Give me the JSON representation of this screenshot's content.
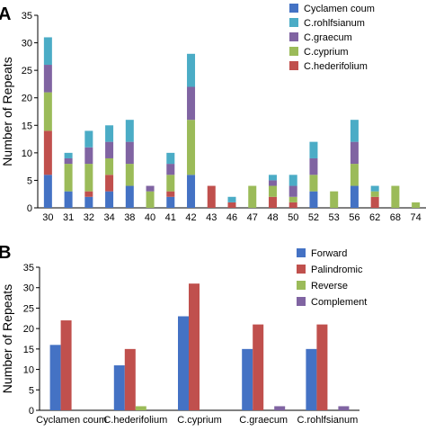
{
  "panels": {
    "a": {
      "letter": "A"
    },
    "b": {
      "letter": "B"
    }
  },
  "chart_data": [
    {
      "type": "bar",
      "stacked": true,
      "ylabel": "Number of Repeats",
      "xlabel": "",
      "ylim": [
        0,
        35
      ],
      "yticks": [
        0,
        5,
        10,
        15,
        20,
        25,
        30,
        35
      ],
      "grid": false,
      "legend_position": "top-right",
      "categories": [
        "30",
        "31",
        "32",
        "34",
        "38",
        "40",
        "41",
        "42",
        "43",
        "46",
        "47",
        "48",
        "50",
        "52",
        "53",
        "56",
        "62",
        "68",
        "74"
      ],
      "series": [
        {
          "name": "Cyclamen coum",
          "color": "#4472C4",
          "values": [
            6,
            3,
            2,
            3,
            4,
            0,
            2,
            6,
            0,
            0,
            0,
            0,
            0,
            3,
            0,
            4,
            0,
            0,
            0
          ]
        },
        {
          "name": "C.hederifolium",
          "color": "#C0504D",
          "values": [
            8,
            0,
            1,
            3,
            0,
            0,
            1,
            0,
            4,
            1,
            0,
            2,
            1,
            0,
            0,
            0,
            2,
            0,
            0
          ]
        },
        {
          "name": "C.cyprium",
          "color": "#9BBB59",
          "values": [
            7,
            5,
            5,
            3,
            4,
            3,
            3,
            10,
            0,
            0,
            4,
            2,
            1,
            3,
            3,
            4,
            1,
            4,
            1
          ]
        },
        {
          "name": "C.graecum",
          "color": "#8064A2",
          "values": [
            5,
            1,
            3,
            3,
            4,
            1,
            2,
            6,
            0,
            0,
            0,
            1,
            2,
            3,
            0,
            4,
            0,
            0,
            0
          ]
        },
        {
          "name": "C.rohlfsianum",
          "color": "#4BACC6",
          "values": [
            5,
            1,
            3,
            3,
            4,
            0,
            2,
            6,
            0,
            1,
            0,
            1,
            2,
            3,
            0,
            4,
            1,
            0,
            0
          ]
        }
      ],
      "legend_order": [
        "Cyclamen coum",
        "C.rohlfsianum",
        "C.graecum",
        "C.cyprium",
        "C.hederifolium"
      ]
    },
    {
      "type": "bar",
      "stacked": false,
      "ylabel": "Number of Repeats",
      "xlabel": "",
      "ylim": [
        0,
        35
      ],
      "yticks": [
        0,
        5,
        10,
        15,
        20,
        25,
        30,
        35
      ],
      "grid": false,
      "legend_position": "top-right",
      "categories": [
        "Cyclamen coum",
        "C.hederifolium",
        "C.cyprium",
        "C.graecum",
        "C.rohlfsianum"
      ],
      "series": [
        {
          "name": "Forward",
          "color": "#4472C4",
          "values": [
            16,
            11,
            23,
            15,
            15
          ]
        },
        {
          "name": "Palindromic",
          "color": "#C0504D",
          "values": [
            22,
            15,
            31,
            21,
            21
          ]
        },
        {
          "name": "Reverse",
          "color": "#9BBB59",
          "values": [
            0,
            1,
            0,
            0,
            0
          ]
        },
        {
          "name": "Complement",
          "color": "#8064A2",
          "values": [
            0,
            0,
            0,
            1,
            1
          ]
        }
      ]
    }
  ]
}
